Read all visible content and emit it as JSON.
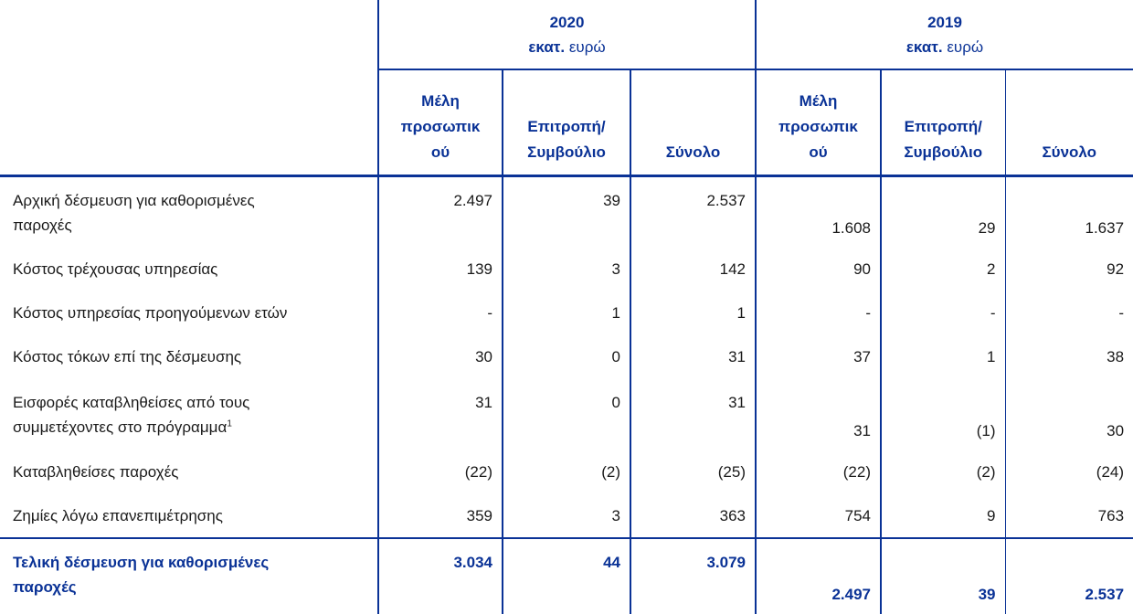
{
  "header": {
    "years": [
      {
        "year": "2020",
        "unit_bold": "εκατ.",
        "unit": "ευρώ"
      },
      {
        "year": "2019",
        "unit_bold": "εκατ.",
        "unit": "ευρώ"
      }
    ],
    "columns": [
      [
        "Μέλη",
        "προσωπικ",
        "ού"
      ],
      [
        "Επιτροπή/",
        "Συμβούλιο"
      ],
      [
        "Σύνολο"
      ]
    ]
  },
  "rows": [
    {
      "label": [
        "Αρχική δέσμευση για καθορισμένες",
        "παροχές"
      ],
      "values": [
        "2.497",
        "39",
        "2.537",
        "1.608",
        "29",
        "1.637"
      ]
    },
    {
      "label": [
        "Κόστος τρέχουσας υπηρεσίας"
      ],
      "values": [
        "139",
        "3",
        "142",
        "90",
        "2",
        "92"
      ]
    },
    {
      "label": [
        "Κόστος υπηρεσίας προηγούμενων ετών"
      ],
      "values": [
        "-",
        "1",
        "1",
        "-",
        "-",
        "-"
      ]
    },
    {
      "label": [
        "Κόστος τόκων επί της δέσμευσης"
      ],
      "values": [
        "30",
        "0",
        "31",
        "37",
        "1",
        "38"
      ]
    },
    {
      "label": [
        "Εισφορές καταβληθείσες από τους",
        "συμμετέχοντες στο πρόγραμμα"
      ],
      "footnote": "1",
      "values": [
        "31",
        "0",
        "31",
        "31",
        "(1)",
        "30"
      ]
    },
    {
      "label": [
        "Καταβληθείσες παροχές"
      ],
      "values": [
        "(22)",
        "(2)",
        "(25)",
        "(22)",
        "(2)",
        "(24)"
      ]
    },
    {
      "label": [
        "Ζημίες λόγω επανεπιμέτρησης"
      ],
      "values": [
        "359",
        "3",
        "363",
        "754",
        "9",
        "763"
      ]
    }
  ],
  "total": {
    "label": [
      "Τελική δέσμευση για καθορισμένες",
      "παροχές"
    ],
    "values": [
      "3.034",
      "44",
      "3.079",
      "2.497",
      "39",
      "2.537"
    ]
  }
}
